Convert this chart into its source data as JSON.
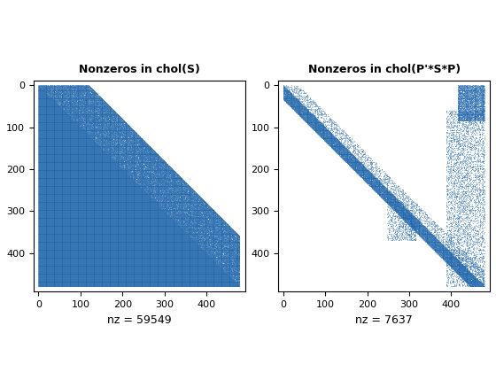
{
  "title1": "Nonzeros in chol(S)",
  "title2": "Nonzeros in chol(P'*S*P)",
  "xlabel1": "nz = 59549",
  "xlabel2": "nz = 7637",
  "n": 480,
  "color": "#2166ac",
  "marker_size": 0.8,
  "figsize": [
    5.6,
    4.2
  ],
  "dpi": 100,
  "bg_color": "#ffffff",
  "title_fontsize": 9,
  "xlabel_fontsize": 9,
  "tick_fontsize": 8
}
